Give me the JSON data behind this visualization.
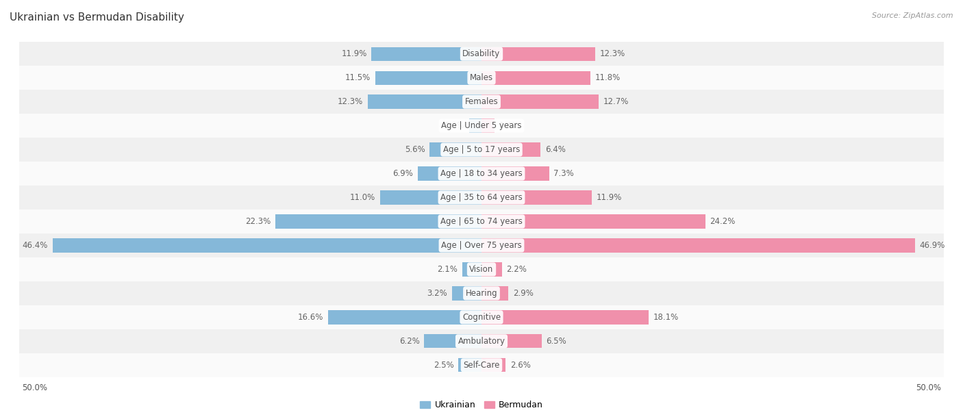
{
  "title": "Ukrainian vs Bermudan Disability",
  "source": "Source: ZipAtlas.com",
  "categories": [
    "Disability",
    "Males",
    "Females",
    "Age | Under 5 years",
    "Age | 5 to 17 years",
    "Age | 18 to 34 years",
    "Age | 35 to 64 years",
    "Age | 65 to 74 years",
    "Age | Over 75 years",
    "Vision",
    "Hearing",
    "Cognitive",
    "Ambulatory",
    "Self-Care"
  ],
  "ukrainian_values": [
    11.9,
    11.5,
    12.3,
    1.3,
    5.6,
    6.9,
    11.0,
    22.3,
    46.4,
    2.1,
    3.2,
    16.6,
    6.2,
    2.5
  ],
  "bermudan_values": [
    12.3,
    11.8,
    12.7,
    1.4,
    6.4,
    7.3,
    11.9,
    24.2,
    46.9,
    2.2,
    2.9,
    18.1,
    6.5,
    2.6
  ],
  "ukrainian_color": "#85b8d9",
  "bermudan_color": "#f090ab",
  "ukrainian_color_dark": "#5b9ec9",
  "bermudan_color_dark": "#e85c85",
  "bar_height": 0.58,
  "max_value": 50.0,
  "bg_color": "#ffffff",
  "row_bg_even": "#f0f0f0",
  "row_bg_odd": "#fafafa",
  "label_fontsize": 8.5,
  "title_fontsize": 11,
  "source_fontsize": 8,
  "legend_fontsize": 9,
  "legend_ukrainian": "Ukrainian",
  "legend_bermudan": "Bermudan"
}
